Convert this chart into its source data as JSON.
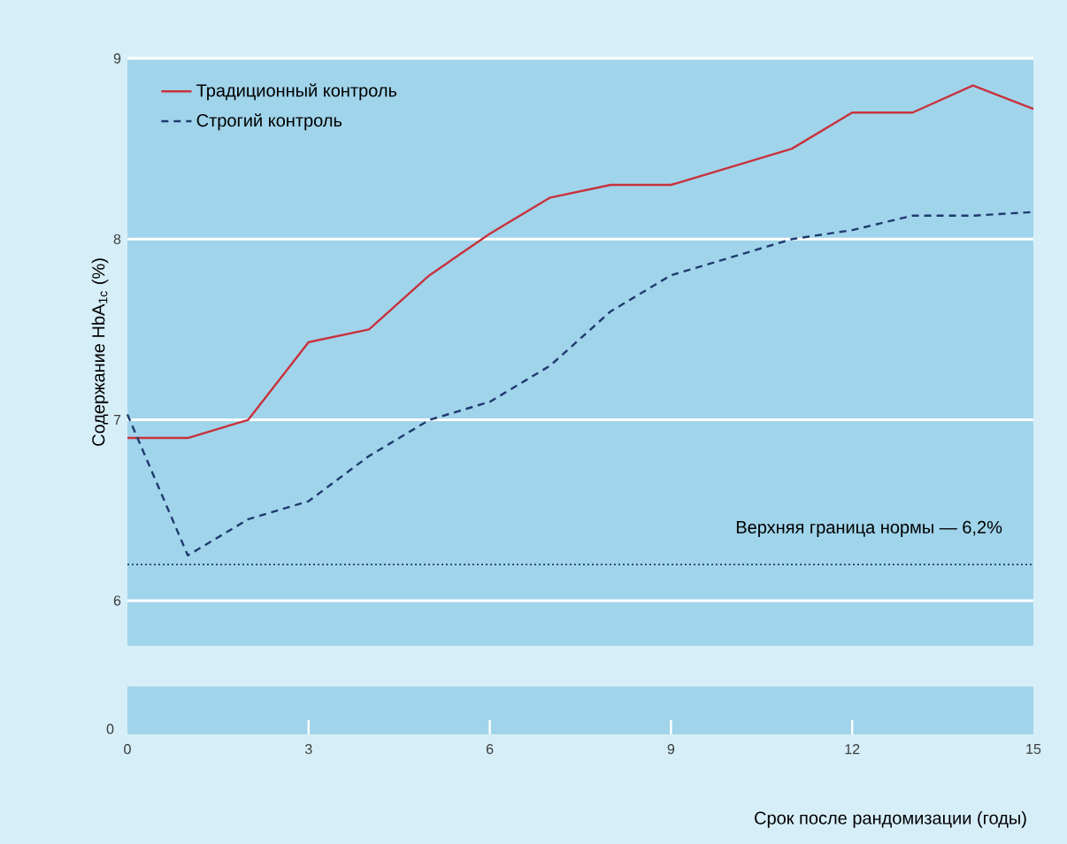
{
  "chart_data": {
    "type": "line",
    "ylabel": "Содержание HbA$_{1c}$ (%)",
    "xlabel": "Срок после рандомизации (годы)",
    "xlim": [
      0,
      15
    ],
    "xticks": [
      0,
      3,
      6,
      9,
      12,
      15
    ],
    "ylim": [
      5.75,
      9.0
    ],
    "yticks": [
      6,
      7,
      8,
      9
    ],
    "grid": "y",
    "legend": "top left",
    "x": [
      0,
      1,
      2,
      3,
      4,
      5,
      6,
      7,
      8,
      9,
      10,
      11,
      12,
      13,
      14,
      15
    ],
    "series": [
      {
        "name": "Традиционный контроль",
        "color": "#c8323c",
        "line_style": "solid",
        "values": [
          6.9,
          6.9,
          7.0,
          7.43,
          7.5,
          7.8,
          8.03,
          8.23,
          8.3,
          8.3,
          8.4,
          8.5,
          8.7,
          8.7,
          8.85,
          8.72
        ]
      },
      {
        "name": "Строгий контроль",
        "color": "#1f3a6e",
        "line_style": "dashed",
        "values": [
          7.03,
          6.25,
          6.45,
          6.55,
          6.8,
          7.0,
          7.1,
          7.3,
          7.6,
          7.8,
          7.9,
          8.0,
          8.05,
          8.13,
          8.13,
          8.15
        ]
      }
    ],
    "ref_lines": [
      {
        "axis": "y",
        "value": 6.2,
        "label": "Верхняя граница нормы — 6,2%",
        "color": "#1f3a6e",
        "line_style": "dotted"
      }
    ],
    "annotations": [
      "0"
    ]
  }
}
